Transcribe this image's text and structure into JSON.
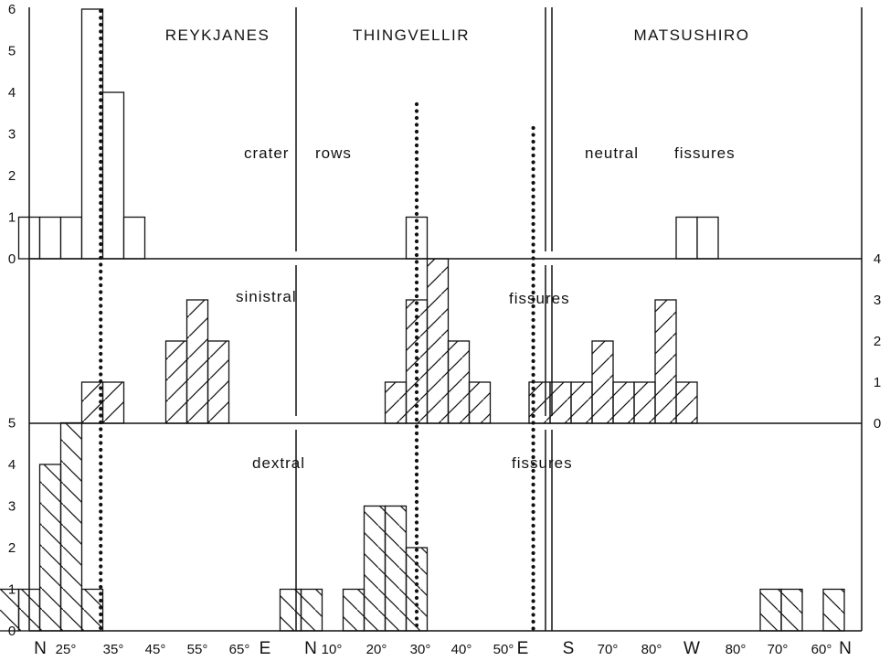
{
  "chart_data": {
    "type": "bar",
    "title": "",
    "sites": [
      "REYKJANES",
      "THINGVELLIR",
      "MATSUSHIRO"
    ],
    "panels": [
      {
        "id": "top",
        "label_words": [
          "crater",
          "rows"
        ],
        "matsushiro_label_words": [
          "neutral",
          "fissures"
        ],
        "ylim": [
          0,
          6
        ],
        "y_ticks": [
          "0",
          "1",
          "2",
          "3",
          "4",
          "5",
          "6"
        ],
        "hatch": "none"
      },
      {
        "id": "middle",
        "label_words": [
          "sinistral",
          "fissures"
        ],
        "ylim": [
          0,
          4
        ],
        "y_ticks": [
          "0",
          "1",
          "2",
          "3",
          "4"
        ],
        "hatch": "forward-diagonal"
      },
      {
        "id": "bottom",
        "label_words": [
          "dextral",
          "fissures"
        ],
        "ylim": [
          0,
          5
        ],
        "y_ticks": [
          "0",
          "1",
          "2",
          "3",
          "4",
          "5"
        ],
        "hatch": "back-diagonal"
      }
    ],
    "x_tick_labels": [
      "N",
      "25°",
      "35°",
      "45°",
      "55°",
      "65°",
      "E",
      "N",
      "10°",
      "20°",
      "30°",
      "40°",
      "50°",
      "E",
      "S",
      "70°",
      "80°",
      "W",
      "80°",
      "70°",
      "60°",
      "N"
    ],
    "series": [
      {
        "site": "REYKJANES",
        "panel": "top",
        "azimuth_deg": [
          20,
          25,
          30,
          35,
          40,
          45
        ],
        "counts": [
          1,
          1,
          1,
          6,
          4,
          1
        ]
      },
      {
        "site": "REYKJANES",
        "panel": "middle",
        "azimuth_deg": [
          35,
          40,
          55,
          60,
          65
        ],
        "counts": [
          1,
          1,
          2,
          3,
          2
        ]
      },
      {
        "site": "REYKJANES",
        "panel": "bottom",
        "azimuth_deg": [
          15,
          20,
          25,
          30,
          35
        ],
        "counts": [
          1,
          1,
          4,
          5,
          1
        ]
      },
      {
        "site": "THINGVELLIR",
        "panel": "top",
        "azimuth_deg": [
          30
        ],
        "counts": [
          1
        ]
      },
      {
        "site": "THINGVELLIR",
        "panel": "middle",
        "azimuth_deg": [
          25,
          30,
          35,
          40,
          45
        ],
        "counts": [
          1,
          3,
          4,
          2,
          1
        ]
      },
      {
        "site": "THINGVELLIR",
        "panel": "bottom",
        "azimuth_deg": [
          0,
          5,
          15,
          20,
          25,
          30
        ],
        "counts": [
          1,
          1,
          1,
          3,
          3,
          2
        ]
      },
      {
        "site": "MATSUSHIRO",
        "panel": "top",
        "azimuth_deg": [
          -82.5,
          -87.5
        ],
        "counts": [
          1,
          1
        ]
      },
      {
        "site": "MATSUSHIRO",
        "panel": "middle",
        "azimuth_deg": [
          -82.5,
          -77.5,
          -72.5,
          -67.5,
          -62.5,
          -57.5,
          -52.5,
          -47.5
        ],
        "counts": [
          1,
          3,
          1,
          1,
          2,
          1,
          1,
          1
        ]
      },
      {
        "site": "MATSUSHIRO",
        "panel": "bottom",
        "azimuth_deg": [
          -117.5,
          -107.5,
          -102.5
        ],
        "counts": [
          1,
          1,
          1
        ]
      }
    ],
    "reference_lines": [
      {
        "site": "REYKJANES",
        "azimuth_deg": 37
      },
      {
        "site": "THINGVELLIR",
        "azimuth_deg": 30
      },
      {
        "site": "MATSUSHIRO",
        "azimuth_deg": -46
      }
    ],
    "grid": false,
    "legend": "none"
  }
}
